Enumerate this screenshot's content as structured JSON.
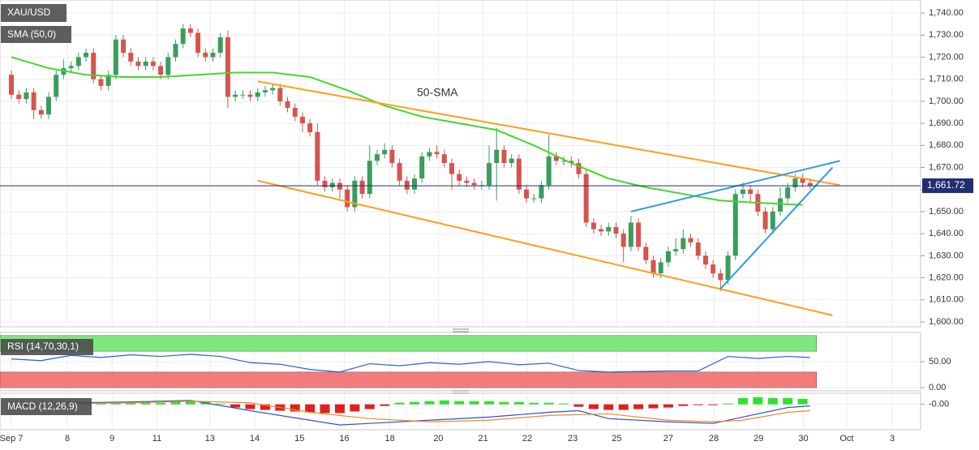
{
  "chart_data": [
    {
      "type": "candlestick",
      "title": "XAU/USD",
      "annotation": "50-SMA",
      "xlim": [
        -1.52,
        121.8
      ],
      "xticks": [
        {
          "value": 0,
          "label": "Sep 7"
        },
        {
          "value": 7.5,
          "label": "8"
        },
        {
          "value": 13.5,
          "label": "9"
        },
        {
          "value": 19.5,
          "label": "11"
        },
        {
          "value": 26.6,
          "label": "13"
        },
        {
          "value": 32.6,
          "label": "14"
        },
        {
          "value": 38.6,
          "label": "15"
        },
        {
          "value": 44.6,
          "label": "16"
        },
        {
          "value": 50.7,
          "label": "18"
        },
        {
          "value": 57.2,
          "label": "20"
        },
        {
          "value": 63.2,
          "label": "21"
        },
        {
          "value": 69.1,
          "label": "22"
        },
        {
          "value": 75.2,
          "label": "23"
        },
        {
          "value": 81.1,
          "label": "25"
        },
        {
          "value": 88.0,
          "label": "27"
        },
        {
          "value": 94.1,
          "label": "28"
        },
        {
          "value": 100.1,
          "label": "29"
        },
        {
          "value": 106.1,
          "label": "30"
        },
        {
          "value": 111.9,
          "label": "Oct"
        },
        {
          "value": 118.0,
          "label": "3"
        }
      ],
      "ylim": [
        1597.8,
        1745.9
      ],
      "yticks": [
        {
          "value": 1600,
          "label": "1,600.00"
        },
        {
          "value": 1610,
          "label": "1,610.00"
        },
        {
          "value": 1620,
          "label": "1,620.00"
        },
        {
          "value": 1630,
          "label": "1,630.00"
        },
        {
          "value": 1640,
          "label": "1,640.00"
        },
        {
          "value": 1650,
          "label": "1,650.00"
        },
        {
          "value": 1660,
          "label": "1,660.00"
        },
        {
          "value": 1670,
          "label": "1,670.00"
        },
        {
          "value": 1680,
          "label": "1,680.00"
        },
        {
          "value": 1690,
          "label": "1,690.00"
        },
        {
          "value": 1700,
          "label": "1,700.00"
        },
        {
          "value": 1710,
          "label": "1,710.00"
        },
        {
          "value": 1720,
          "label": "1,720.00"
        },
        {
          "value": 1730,
          "label": "1,730.00"
        },
        {
          "value": 1740,
          "label": "1,740.00"
        }
      ],
      "grid": true,
      "up_color": "#3a9d5d",
      "down_color": "#d5544f",
      "open": [
        1712,
        1703,
        1701,
        1704,
        1696,
        1694,
        1702,
        1712,
        1715,
        1716,
        1720,
        1722,
        1710,
        1707,
        1712,
        1728,
        1722,
        1718,
        1716,
        1718,
        1716,
        1712,
        1720,
        1726,
        1733,
        1731,
        1722,
        1720,
        1722,
        1729,
        1702,
        1703,
        1703,
        1702,
        1704,
        1705,
        1706,
        1700,
        1697,
        1693,
        1690,
        1686,
        1664,
        1661,
        1663,
        1660,
        1652,
        1664,
        1658,
        1673,
        1676,
        1678,
        1672,
        1664,
        1660,
        1665,
        1675,
        1677,
        1676,
        1672,
        1667,
        1664,
        1663,
        1662,
        1662,
        1672,
        1678,
        1672,
        1674,
        1660,
        1656,
        1656,
        1662,
        1675,
        1673,
        1673,
        1672,
        1667,
        1645,
        1642,
        1641,
        1643,
        1640,
        1634,
        1645,
        1634,
        1628,
        1622,
        1627,
        1632,
        1633,
        1638,
        1636,
        1630,
        1626,
        1622,
        1619,
        1630,
        1658,
        1660,
        1658,
        1650,
        1642,
        1650,
        1656,
        1661,
        1665,
        1663
      ],
      "high": [
        1714,
        1705,
        1706,
        1706,
        1698,
        1704,
        1714,
        1719,
        1718,
        1722,
        1724,
        1724,
        1712,
        1714,
        1730,
        1730,
        1724,
        1720,
        1720,
        1720,
        1718,
        1722,
        1728,
        1735,
        1735,
        1733,
        1724,
        1724,
        1731,
        1732,
        1705,
        1705,
        1705,
        1706,
        1707,
        1708,
        1708,
        1702,
        1699,
        1695,
        1692,
        1690,
        1666,
        1665,
        1665,
        1662,
        1666,
        1666,
        1680,
        1678,
        1681,
        1680,
        1674,
        1666,
        1667,
        1677,
        1679,
        1680,
        1678,
        1674,
        1669,
        1666,
        1665,
        1664,
        1680,
        1688,
        1680,
        1676,
        1676,
        1662,
        1658,
        1664,
        1685,
        1677,
        1675,
        1675,
        1674,
        1669,
        1647,
        1644,
        1645,
        1645,
        1642,
        1648,
        1647,
        1636,
        1630,
        1629,
        1634,
        1638,
        1642,
        1640,
        1638,
        1632,
        1628,
        1624,
        1632,
        1660,
        1663,
        1662,
        1660,
        1652,
        1652,
        1661,
        1663,
        1667,
        1667,
        1665
      ],
      "low": [
        1701,
        1699,
        1699,
        1692,
        1692,
        1692,
        1700,
        1710,
        1713,
        1714,
        1718,
        1708,
        1705,
        1705,
        1710,
        1720,
        1716,
        1714,
        1714,
        1714,
        1710,
        1710,
        1718,
        1724,
        1729,
        1720,
        1718,
        1718,
        1720,
        1697,
        1700,
        1701,
        1700,
        1700,
        1702,
        1703,
        1698,
        1695,
        1691,
        1686,
        1684,
        1662,
        1659,
        1659,
        1656,
        1650,
        1650,
        1656,
        1656,
        1671,
        1674,
        1670,
        1662,
        1658,
        1658,
        1663,
        1673,
        1674,
        1670,
        1660,
        1662,
        1661,
        1660,
        1660,
        1660,
        1655,
        1670,
        1670,
        1658,
        1654,
        1654,
        1654,
        1660,
        1671,
        1671,
        1670,
        1665,
        1643,
        1640,
        1639,
        1639,
        1638,
        1627,
        1632,
        1632,
        1626,
        1620,
        1620,
        1625,
        1630,
        1631,
        1634,
        1628,
        1624,
        1620,
        1614,
        1617,
        1628,
        1656,
        1654,
        1648,
        1640,
        1640,
        1648,
        1654,
        1659,
        1661,
        1660
      ],
      "close": [
        1703,
        1701,
        1704,
        1696,
        1694,
        1702,
        1712,
        1715,
        1716,
        1720,
        1722,
        1710,
        1707,
        1712,
        1728,
        1722,
        1718,
        1716,
        1718,
        1716,
        1712,
        1720,
        1726,
        1733,
        1731,
        1722,
        1720,
        1722,
        1729,
        1702,
        1703,
        1703,
        1702,
        1704,
        1705,
        1706,
        1700,
        1697,
        1693,
        1690,
        1686,
        1664,
        1661,
        1663,
        1660,
        1652,
        1664,
        1658,
        1673,
        1676,
        1678,
        1672,
        1664,
        1660,
        1665,
        1675,
        1677,
        1676,
        1672,
        1667,
        1664,
        1663,
        1662,
        1662,
        1672,
        1678,
        1672,
        1674,
        1660,
        1656,
        1656,
        1662,
        1675,
        1673,
        1673,
        1672,
        1667,
        1645,
        1642,
        1641,
        1643,
        1640,
        1634,
        1645,
        1634,
        1628,
        1622,
        1627,
        1632,
        1633,
        1638,
        1636,
        1630,
        1626,
        1622,
        1619,
        1630,
        1658,
        1660,
        1658,
        1650,
        1642,
        1650,
        1656,
        1661,
        1665,
        1663,
        1661.72
      ],
      "sma": {
        "name": "SMA (50,0)",
        "color": "#44d62c",
        "x": [
          0,
          5,
          10,
          15,
          20,
          25,
          30,
          35,
          40,
          45,
          50,
          55,
          60,
          65,
          70,
          75,
          80,
          85,
          90,
          95,
          100,
          106
        ],
        "values": [
          1720,
          1715,
          1712,
          1711,
          1711,
          1712,
          1713,
          1713,
          1711,
          1705,
          1698,
          1693,
          1690,
          1687,
          1680,
          1672,
          1665,
          1661,
          1658,
          1655,
          1654,
          1653
        ]
      },
      "trendlines": [
        {
          "color": "#ff9f1c",
          "x": [
            33,
            111
          ],
          "values": [
            1709,
            1662
          ]
        },
        {
          "color": "#ff9f1c",
          "x": [
            33,
            110
          ],
          "values": [
            1664,
            1603
          ]
        },
        {
          "color": "#2e9be6",
          "x": [
            83,
            111
          ],
          "values": [
            1650,
            1673
          ]
        },
        {
          "color": "#2e9be6",
          "x": [
            95,
            110
          ],
          "values": [
            1615,
            1670
          ]
        }
      ],
      "last": {
        "value": 1661.72,
        "label": "1,661.72",
        "color": "#1f2f6f"
      }
    },
    {
      "type": "line",
      "title": "RSI (14,70,30,1)",
      "ylim": [
        -6,
        106
      ],
      "yticks": [
        {
          "value": 0,
          "label": "0.00"
        },
        {
          "value": 50,
          "label": "50.00"
        }
      ],
      "bands": [
        {
          "range": [
            70,
            100
          ],
          "color": "#7ee87e"
        },
        {
          "range": [
            0,
            30
          ],
          "color": "#f27c7c"
        }
      ],
      "color": "#2c5ce0",
      "x": [
        0,
        4,
        8,
        12,
        16,
        20,
        24,
        28,
        32,
        36,
        40,
        44,
        48,
        52,
        56,
        60,
        64,
        68,
        72,
        76,
        80,
        84,
        88,
        92,
        96,
        100,
        104,
        107
      ],
      "values": [
        55,
        52,
        62,
        58,
        63,
        60,
        64,
        60,
        48,
        45,
        35,
        30,
        46,
        42,
        48,
        45,
        50,
        44,
        47,
        33,
        30,
        31,
        32,
        32,
        60,
        56,
        60,
        58
      ]
    },
    {
      "type": "macd",
      "title": "MACD (12,26,9)",
      "ylim": [
        -16,
        7
      ],
      "yticks": [
        {
          "value": 0,
          "label": "-0.00"
        }
      ],
      "hist_up": "#2fe02f",
      "hist_down": "#e02020",
      "hist_x": [
        0,
        2,
        4,
        6,
        8,
        10,
        12,
        14,
        16,
        18,
        20,
        22,
        24,
        26,
        28,
        30,
        32,
        34,
        36,
        38,
        40,
        42,
        44,
        46,
        48,
        50,
        52,
        54,
        56,
        58,
        60,
        62,
        64,
        66,
        68,
        70,
        72,
        74,
        76,
        78,
        80,
        82,
        84,
        86,
        88,
        90,
        92,
        94,
        96,
        98,
        100,
        102,
        104,
        106
      ],
      "hist": [
        -0.5,
        -0.5,
        -0.3,
        0.3,
        0.5,
        0.5,
        0.8,
        1.5,
        1.5,
        1.2,
        1,
        1.8,
        2.2,
        2,
        0.5,
        -2,
        -3,
        -3.5,
        -4,
        -4.5,
        -5,
        -5.5,
        -5.5,
        -4.5,
        -3,
        -1,
        1,
        1.5,
        2,
        2.5,
        2,
        2,
        2,
        1.5,
        1.5,
        1,
        1,
        0.5,
        -1.5,
        -3,
        -3.5,
        -3.5,
        -3,
        -2.5,
        -2,
        -1,
        -0.5,
        -0.5,
        0.5,
        4,
        4.5,
        4,
        4,
        3.5
      ],
      "macd": {
        "color": "#2f4fd8",
        "x": [
          0,
          8,
          16,
          24,
          32,
          40,
          44,
          48,
          56,
          64,
          72,
          76,
          80,
          88,
          94,
          98,
          104,
          107
        ],
        "values": [
          -1,
          1,
          1.5,
          2.5,
          -4,
          -10,
          -13,
          -12,
          -10,
          -8,
          -5,
          -4,
          -9,
          -11,
          -12,
          -8,
          -2,
          -1
        ]
      },
      "signal": {
        "color": "#f08a24",
        "x": [
          0,
          8,
          16,
          24,
          32,
          40,
          48,
          56,
          64,
          72,
          80,
          88,
          94,
          98,
          104,
          107
        ],
        "values": [
          0,
          0.5,
          1,
          2,
          1,
          -5,
          -9,
          -11,
          -10,
          -7,
          -6,
          -10,
          -11,
          -10,
          -5,
          -4
        ]
      }
    }
  ]
}
